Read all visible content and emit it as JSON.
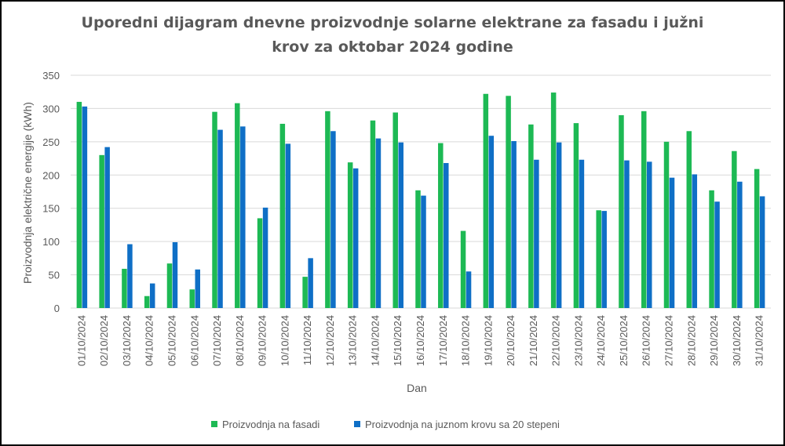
{
  "colors": {
    "fasada": "#1db954",
    "krov": "#0f6fc6",
    "grid": "#d9d9d9",
    "text": "#595959"
  },
  "chart_data": {
    "type": "bar",
    "title": "Uporedni dijagram dnevne proizvodnje solarne elektrane za fasadu i južni krov za oktobar 2024 godine",
    "title_lines": [
      "Uporedni dijagram dnevne proizvodnje solarne elektrane za fasadu i južni",
      "krov za oktobar 2024 godine"
    ],
    "xlabel": "Dan",
    "ylabel": "Proizvodnja električne energije (kWh)",
    "ylim": [
      0,
      350
    ],
    "yticks": [
      0,
      50,
      100,
      150,
      200,
      250,
      300,
      350
    ],
    "grid": true,
    "legend_position": "bottom",
    "categories": [
      "01/10/2024",
      "02/10/2024",
      "03/10/2024",
      "04/10/2024",
      "05/10/2024",
      "06/10/2024",
      "07/10/2024",
      "08/10/2024",
      "09/10/2024",
      "10/10/2024",
      "11/10/2024",
      "12/10/2024",
      "13/10/2024",
      "14/10/2024",
      "15/10/2024",
      "16/10/2024",
      "17/10/2024",
      "18/10/2024",
      "19/10/2024",
      "20/10/2024",
      "21/10/2024",
      "22/10/2024",
      "23/10/2024",
      "24/10/2024",
      "25/10/2024",
      "26/10/2024",
      "27/10/2024",
      "28/10/2024",
      "29/10/2024",
      "30/10/2024",
      "31/10/2024"
    ],
    "series": [
      {
        "name": "Proizvodnja na fasadi",
        "values": [
          310,
          230,
          59,
          18,
          67,
          28,
          295,
          308,
          135,
          277,
          47,
          296,
          219,
          282,
          294,
          177,
          248,
          116,
          322,
          319,
          276,
          324,
          278,
          147,
          290,
          296,
          250,
          266,
          177,
          236,
          209
        ]
      },
      {
        "name": "Proizvodnja na juznom krovu sa 20 stepeni",
        "values": [
          303,
          242,
          96,
          37,
          99,
          58,
          268,
          273,
          151,
          247,
          75,
          266,
          210,
          255,
          249,
          169,
          218,
          55,
          259,
          251,
          223,
          249,
          223,
          146,
          222,
          220,
          196,
          201,
          160,
          190,
          168
        ]
      }
    ]
  }
}
